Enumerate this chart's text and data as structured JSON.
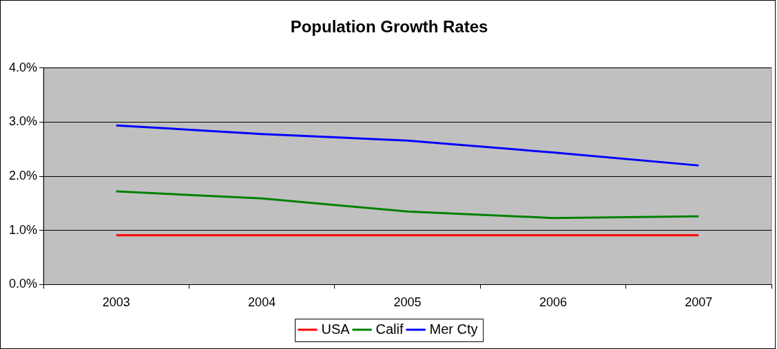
{
  "chart_data": {
    "type": "line",
    "title": "Population Growth Rates",
    "categories": [
      "2003",
      "2004",
      "2005",
      "2006",
      "2007"
    ],
    "series": [
      {
        "name": "USA",
        "color": "#ff0000",
        "values": [
          0.91,
          0.91,
          0.91,
          0.91,
          0.91
        ]
      },
      {
        "name": "Calif",
        "color": "#008000",
        "values": [
          1.72,
          1.59,
          1.35,
          1.23,
          1.26
        ]
      },
      {
        "name": "Mer Cty",
        "color": "#0000ff",
        "values": [
          2.94,
          2.78,
          2.66,
          2.44,
          2.2
        ]
      }
    ],
    "ylim": [
      0,
      4
    ],
    "yticks": [
      {
        "value": 0,
        "label": "0.0%"
      },
      {
        "value": 1,
        "label": "1.0%"
      },
      {
        "value": 2,
        "label": "2.0%"
      },
      {
        "value": 3,
        "label": "3.0%"
      },
      {
        "value": 4,
        "label": "4.0%"
      }
    ],
    "grid": "y",
    "legend": "bottom",
    "marker": "none",
    "line_style": "solid"
  }
}
